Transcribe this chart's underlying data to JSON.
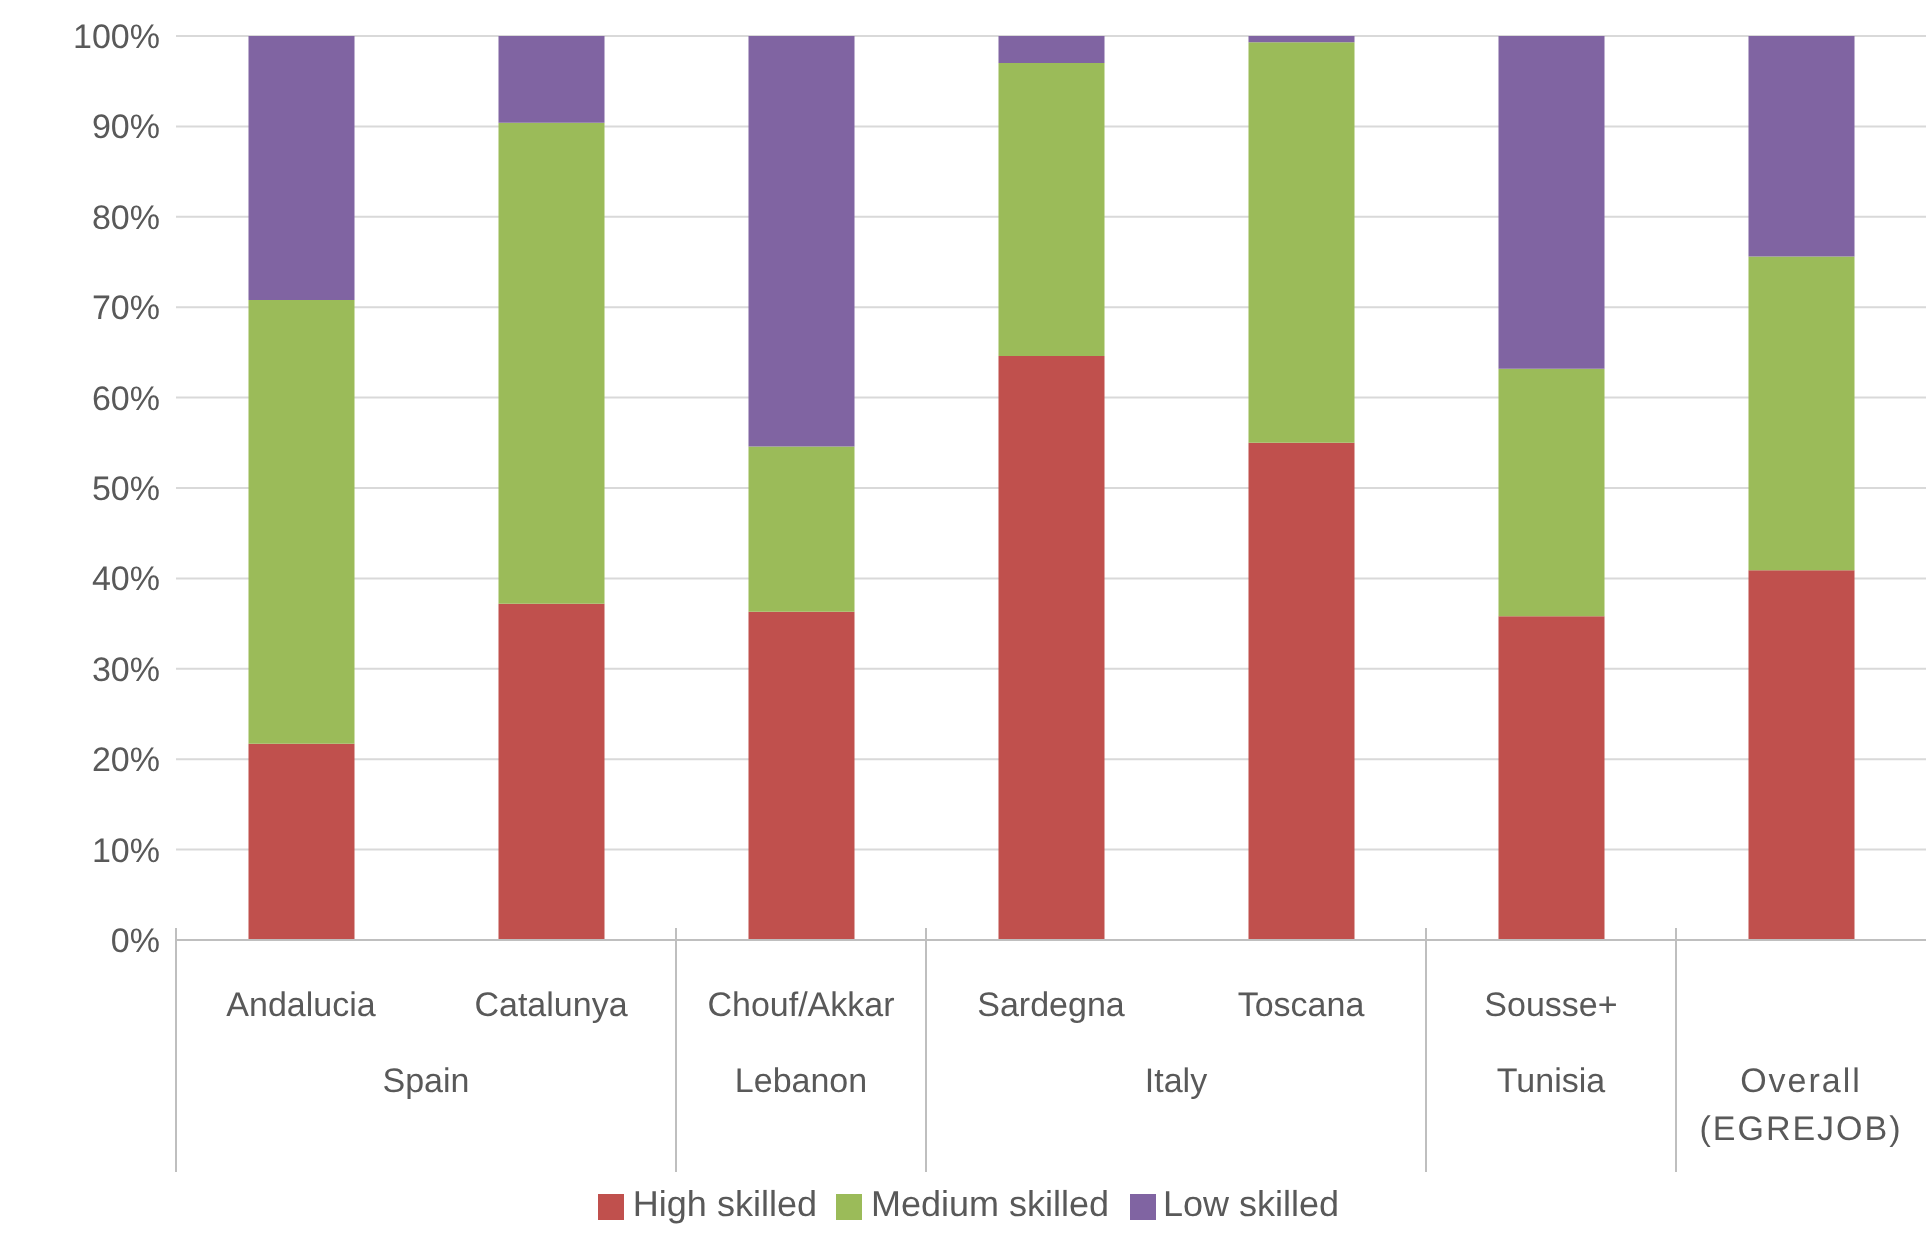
{
  "chart_data": {
    "type": "bar",
    "stacked": true,
    "categories": [
      "Andalucia",
      "Catalunya",
      "Chouf/Akkar",
      "Sardegna",
      "Toscana",
      "Sousse+",
      null
    ],
    "series": [
      {
        "name": "High skilled",
        "color": "#c0504d",
        "values": [
          21.7,
          37.2,
          36.3,
          64.6,
          55.0,
          35.8,
          40.9
        ]
      },
      {
        "name": "Medium skilled",
        "color": "#9bbb59",
        "values": [
          49.1,
          53.2,
          18.3,
          32.4,
          44.3,
          27.4,
          34.7
        ]
      },
      {
        "name": "Low skilled",
        "color": "#8064a2",
        "values": [
          29.2,
          9.6,
          45.4,
          3.0,
          0.7,
          36.8,
          24.4
        ]
      }
    ],
    "annotations": [
      "Spain",
      "Lebanon",
      "Italy",
      "Tunisia",
      "Overall (EGREJOB)"
    ],
    "ylim": [
      0,
      100
    ],
    "yticks": [
      {
        "value": 0,
        "label": "0%"
      },
      {
        "value": 10,
        "label": "10%"
      },
      {
        "value": 20,
        "label": "20%"
      },
      {
        "value": 30,
        "label": "30%"
      },
      {
        "value": 40,
        "label": "40%"
      },
      {
        "value": 50,
        "label": "50%"
      },
      {
        "value": 60,
        "label": "60%"
      },
      {
        "value": 70,
        "label": "70%"
      },
      {
        "value": 80,
        "label": "80%"
      },
      {
        "value": 90,
        "label": "90%"
      },
      {
        "value": 100,
        "label": "100%"
      }
    ],
    "grid": "y",
    "legend": "bottom"
  }
}
